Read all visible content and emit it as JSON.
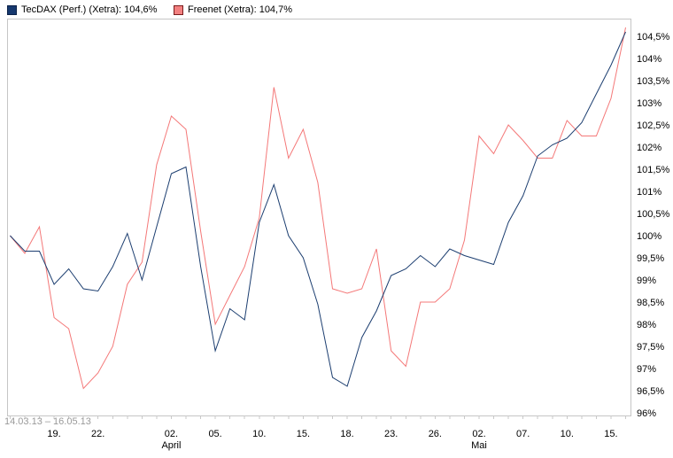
{
  "legend": {
    "items": [
      {
        "name": "tecdax",
        "label": "TecDAX (Perf.) (Xetra): 104,6%",
        "swatch_fill": "#16386e",
        "swatch_border": "#0b2148"
      },
      {
        "name": "freenet",
        "label": "Freenet (Xetra): 104,7%",
        "swatch_fill": "#f28080",
        "swatch_border": "#7a1c1c"
      }
    ]
  },
  "axis": {
    "date_range": "14.03.13 – 16.05.13",
    "y_labels": [
      "104,5%",
      "104%",
      "103,5%",
      "103%",
      "102,5%",
      "102%",
      "101,5%",
      "101%",
      "100,5%",
      "100%",
      "99,5%",
      "99%",
      "98,5%",
      "98%",
      "97,5%",
      "97%",
      "96,5%",
      "96%"
    ],
    "x_ticks": [
      {
        "i": 3,
        "label": "19."
      },
      {
        "i": 6,
        "label": "22."
      },
      {
        "i": 11,
        "label": "02.",
        "month": "April"
      },
      {
        "i": 14,
        "label": "05."
      },
      {
        "i": 17,
        "label": "10."
      },
      {
        "i": 20,
        "label": "15."
      },
      {
        "i": 23,
        "label": "18."
      },
      {
        "i": 26,
        "label": "23."
      },
      {
        "i": 29,
        "label": "26."
      },
      {
        "i": 32,
        "label": "02.",
        "month": "Mai"
      },
      {
        "i": 35,
        "label": "07."
      },
      {
        "i": 38,
        "label": "10."
      },
      {
        "i": 41,
        "label": "15."
      }
    ]
  },
  "chart_data": {
    "type": "line",
    "title": "",
    "ylabel": "",
    "xlabel": "",
    "ylim": [
      96,
      104.5
    ],
    "y_step": 0.5,
    "grid": false,
    "legend_position": "top-left",
    "x_categories": [
      "14.03",
      "15.03",
      "18.03",
      "19.03",
      "20.03",
      "21.03",
      "22.03",
      "25.03",
      "26.03",
      "27.03",
      "28.03",
      "02.04",
      "03.04",
      "04.04",
      "05.04",
      "08.04",
      "09.04",
      "10.04",
      "11.04",
      "12.04",
      "15.04",
      "16.04",
      "17.04",
      "18.04",
      "19.04",
      "22.04",
      "23.04",
      "24.04",
      "25.04",
      "26.04",
      "29.04",
      "30.04",
      "02.05",
      "03.05",
      "06.05",
      "07.05",
      "08.05",
      "09.05",
      "10.05",
      "13.05",
      "14.05",
      "15.05",
      "16.05"
    ],
    "series": [
      {
        "name": "TecDAX (Perf.) (Xetra)",
        "current_value": "104,6%",
        "color": "#1c3e70",
        "values": [
          100.0,
          99.65,
          99.65,
          98.9,
          99.25,
          98.8,
          98.75,
          99.3,
          100.05,
          99.0,
          100.2,
          101.4,
          101.55,
          99.3,
          97.4,
          98.35,
          98.1,
          100.3,
          101.15,
          100.0,
          99.5,
          98.45,
          96.8,
          96.6,
          97.7,
          98.3,
          99.1,
          99.25,
          99.55,
          99.3,
          99.7,
          99.55,
          99.45,
          99.35,
          100.3,
          100.9,
          101.8,
          102.05,
          102.2,
          102.55,
          103.2,
          103.85,
          104.6
        ]
      },
      {
        "name": "Freenet (Xetra)",
        "current_value": "104,7%",
        "color": "#f47878",
        "values": [
          100.0,
          99.6,
          100.2,
          98.15,
          97.9,
          96.55,
          96.9,
          97.5,
          98.9,
          99.4,
          101.6,
          102.7,
          102.4,
          100.1,
          98.0,
          98.65,
          99.3,
          100.4,
          103.35,
          101.75,
          102.4,
          101.2,
          98.8,
          98.7,
          98.8,
          99.7,
          97.4,
          97.05,
          98.5,
          98.5,
          98.8,
          99.9,
          102.25,
          101.85,
          102.5,
          102.15,
          101.75,
          101.75,
          102.6,
          102.25,
          102.25,
          103.1,
          104.7
        ]
      }
    ]
  }
}
